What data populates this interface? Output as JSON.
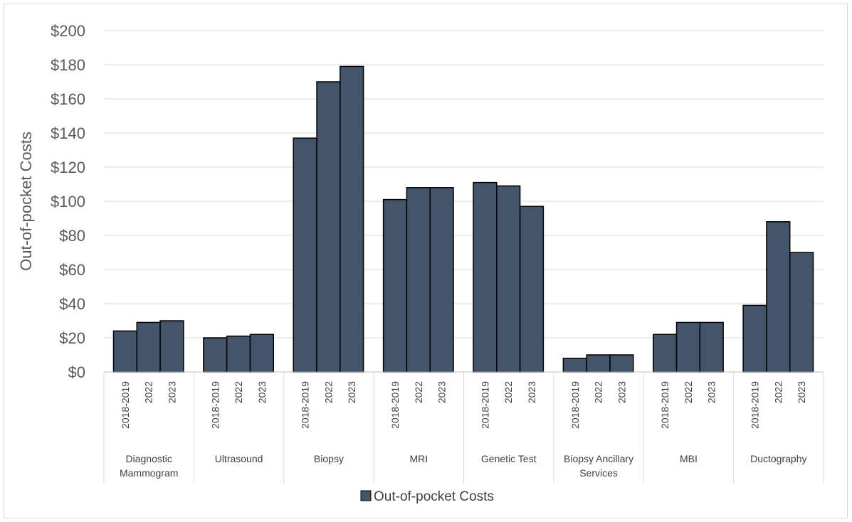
{
  "chart_data": {
    "type": "bar",
    "title": "",
    "xlabel": "",
    "ylabel": "Out-of-pocket Costs",
    "ylim": [
      0,
      200
    ],
    "ytick_labels": [
      "$0",
      "$20",
      "$40",
      "$60",
      "$80",
      "$100",
      "$120",
      "$140",
      "$160",
      "$180",
      "$200"
    ],
    "grid": "horizontal",
    "legend_position": "bottom",
    "bar_color": "#44546a",
    "groups": [
      {
        "label": "Diagnostic Mammogram",
        "label_lines": [
          "Diagnostic",
          "Mammogram"
        ],
        "periods": [
          "2018-2019",
          "2022",
          "2023"
        ],
        "values": [
          24,
          29,
          30
        ]
      },
      {
        "label": "Ultrasound",
        "label_lines": [
          "Ultrasound"
        ],
        "periods": [
          "2018-2019",
          "2022",
          "2023"
        ],
        "values": [
          20,
          21,
          22
        ]
      },
      {
        "label": "Biopsy",
        "label_lines": [
          "Biopsy"
        ],
        "periods": [
          "2018-2019",
          "2022",
          "2023"
        ],
        "values": [
          137,
          170,
          179
        ]
      },
      {
        "label": "MRI",
        "label_lines": [
          "MRI"
        ],
        "periods": [
          "2018-2019",
          "2022",
          "2023"
        ],
        "values": [
          101,
          108,
          108
        ]
      },
      {
        "label": "Genetic Test",
        "label_lines": [
          "Genetic Test"
        ],
        "periods": [
          "2018-2019",
          "2022",
          "2023"
        ],
        "values": [
          111,
          109,
          97
        ]
      },
      {
        "label": "Biopsy Ancillary Services",
        "label_lines": [
          "Biopsy Ancillary",
          "Services"
        ],
        "periods": [
          "2018-2019",
          "2022",
          "2023"
        ],
        "values": [
          8,
          10,
          10
        ]
      },
      {
        "label": "MBI",
        "label_lines": [
          "MBI"
        ],
        "periods": [
          "2018-2019",
          "2022",
          "2023"
        ],
        "values": [
          22,
          29,
          29
        ]
      },
      {
        "label": "Ductography",
        "label_lines": [
          "Ductography"
        ],
        "periods": [
          "2018-2019",
          "2022",
          "2023"
        ],
        "values": [
          39,
          88,
          70
        ]
      }
    ],
    "series": [
      {
        "name": "Out-of-pocket Costs"
      }
    ]
  }
}
